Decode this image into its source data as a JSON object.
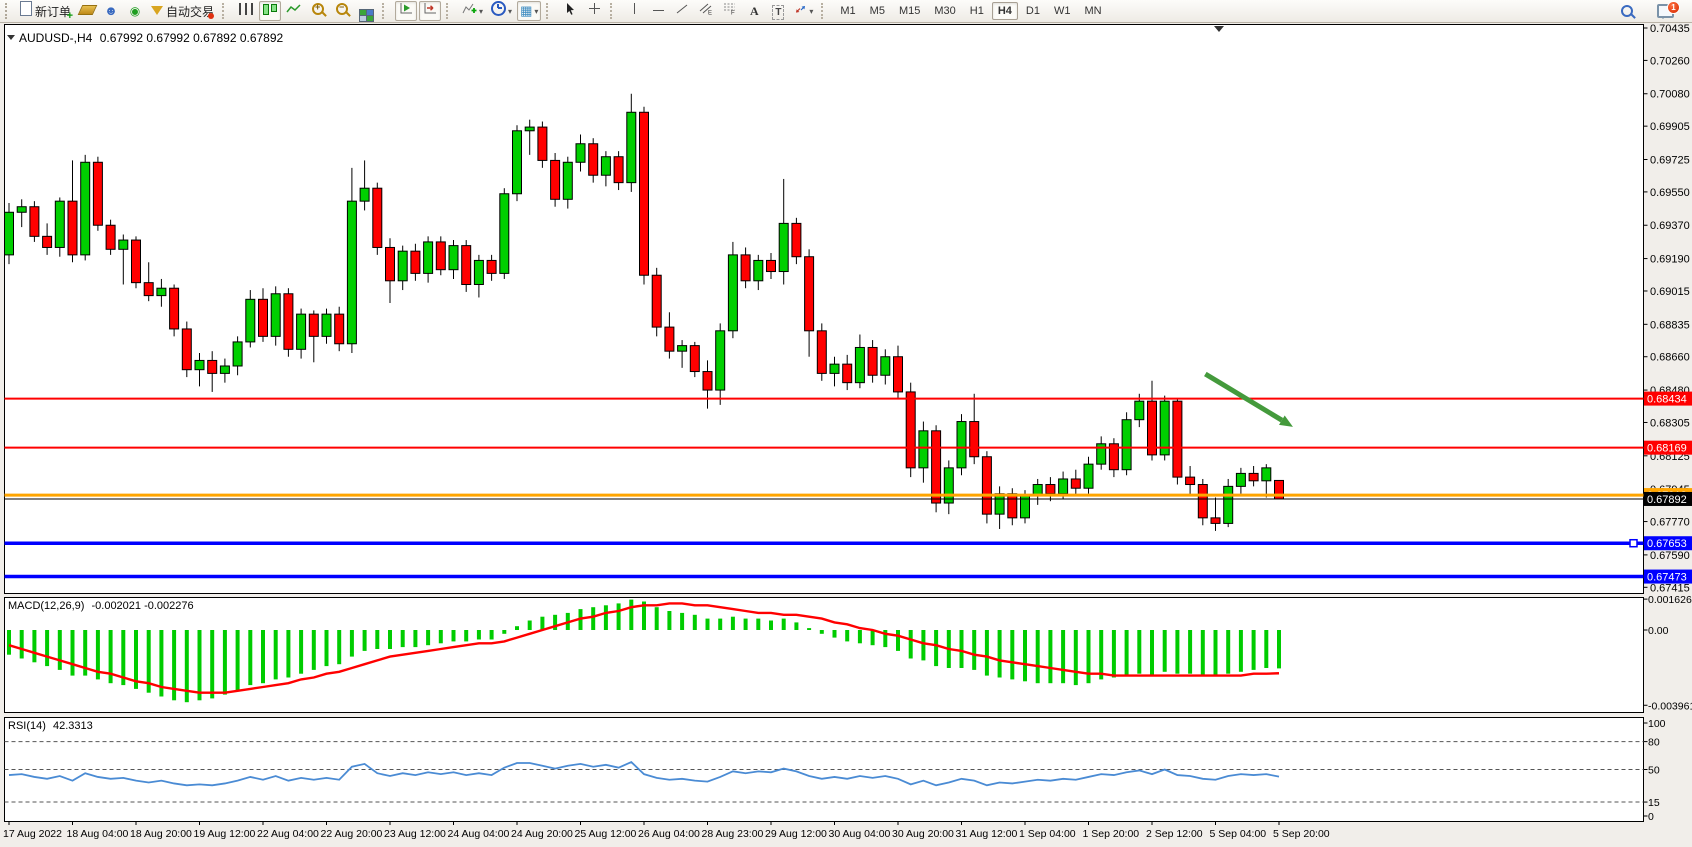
{
  "toolbar": {
    "items": [
      {
        "name": "new-order",
        "icon": "new-order-icon",
        "label": "新订单"
      },
      {
        "name": "styler",
        "icon": "eraser-icon"
      },
      {
        "name": "publisher",
        "icon": "publisher-icon"
      },
      {
        "name": "signals",
        "icon": "signal-icon"
      },
      {
        "name": "autotrade",
        "icon": "autotrade-icon",
        "label": "自动交易"
      },
      {
        "type": "sep"
      },
      {
        "name": "bar-chart-mode",
        "icon": "bars-icon"
      },
      {
        "name": "candle-chart-mode",
        "icon": "candles-icon",
        "active": true
      },
      {
        "name": "line-chart-mode",
        "icon": "line-chart-icon"
      },
      {
        "name": "zoom-in",
        "icon": "zoom-in-icon"
      },
      {
        "name": "zoom-out",
        "icon": "zoom-out-icon"
      },
      {
        "name": "tile-windows",
        "icon": "tiles-icon"
      },
      {
        "type": "sep"
      },
      {
        "name": "auto-scroll",
        "icon": "auto-scroll-icon",
        "active": true
      },
      {
        "name": "chart-shift",
        "icon": "chart-shift-icon",
        "active": true
      },
      {
        "type": "sep"
      },
      {
        "name": "indicators",
        "icon": "indicators-icon",
        "dropdown": true
      },
      {
        "name": "periods",
        "icon": "clock-icon",
        "dropdown": true
      },
      {
        "name": "templates",
        "icon": "template-icon",
        "dropdown": true,
        "active": true
      },
      {
        "type": "sep"
      },
      {
        "name": "cursor",
        "icon": "cursor-icon"
      },
      {
        "name": "crosshair",
        "icon": "crosshair-icon"
      },
      {
        "type": "sep"
      },
      {
        "name": "vertical-line",
        "icon": "vline-icon"
      },
      {
        "name": "horizontal-line",
        "icon": "hline-icon"
      },
      {
        "name": "trendline",
        "icon": "trendline-icon"
      },
      {
        "name": "equidistant-channel",
        "icon": "channel-icon"
      },
      {
        "name": "fibonacci",
        "icon": "fibo-icon"
      },
      {
        "name": "text",
        "icon": "text-icon"
      },
      {
        "name": "text-label",
        "icon": "text-label-icon"
      },
      {
        "name": "arrows",
        "icon": "shapes-icon",
        "dropdown": true
      },
      {
        "type": "sep"
      }
    ],
    "timeframes": [
      {
        "label": "M1"
      },
      {
        "label": "M5"
      },
      {
        "label": "M15"
      },
      {
        "label": "M30"
      },
      {
        "label": "H1"
      },
      {
        "label": "H4",
        "active": true
      },
      {
        "label": "D1"
      },
      {
        "label": "W1"
      },
      {
        "label": "MN"
      }
    ],
    "notifications": {
      "count": "1"
    }
  },
  "chart": {
    "symbol_title": "AUDUSD-,H4",
    "ohlc_text": "0.67992 0.67992 0.67892 0.67892"
  },
  "chart_data": {
    "type": "candlestick",
    "symbol": "AUDUSD-",
    "timeframe": "H4",
    "colors": {
      "up": "#00CF00",
      "down": "#FF0000",
      "outline": "#000000",
      "background": "#FFFFFF"
    },
    "price_axis_ticks": [
      0.70435,
      0.7026,
      0.7008,
      0.69905,
      0.69725,
      0.6955,
      0.6937,
      0.6919,
      0.69015,
      0.68835,
      0.6866,
      0.6848,
      0.68305,
      0.68125,
      0.67945,
      0.6777,
      0.6759,
      0.67415
    ],
    "time_labels": [
      "17 Aug 2022",
      "18 Aug 04:00",
      "18 Aug 20:00",
      "19 Aug 12:00",
      "22 Aug 04:00",
      "22 Aug 20:00",
      "23 Aug 12:00",
      "24 Aug 04:00",
      "24 Aug 20:00",
      "25 Aug 12:00",
      "26 Aug 04:00",
      "28 Aug 23:00",
      "29 Aug 12:00",
      "30 Aug 04:00",
      "30 Aug 20:00",
      "31 Aug 12:00",
      "1 Sep 04:00",
      "1 Sep 20:00",
      "2 Sep 12:00",
      "5 Sep 04:00",
      "5 Sep 20:00"
    ],
    "candles": [
      [
        0.6921,
        0.6949,
        0.6916,
        0.6944
      ],
      [
        0.6944,
        0.6951,
        0.6936,
        0.6947
      ],
      [
        0.6947,
        0.695,
        0.6928,
        0.6931
      ],
      [
        0.6931,
        0.6938,
        0.6921,
        0.6925
      ],
      [
        0.6925,
        0.6952,
        0.692,
        0.695
      ],
      [
        0.695,
        0.6972,
        0.6917,
        0.6921
      ],
      [
        0.6921,
        0.6975,
        0.6918,
        0.6971
      ],
      [
        0.6971,
        0.6974,
        0.6934,
        0.6937
      ],
      [
        0.6937,
        0.694,
        0.6921,
        0.6924
      ],
      [
        0.6924,
        0.6932,
        0.6905,
        0.6929
      ],
      [
        0.6929,
        0.6931,
        0.6903,
        0.6906
      ],
      [
        0.6906,
        0.6917,
        0.6896,
        0.6899
      ],
      [
        0.6899,
        0.6908,
        0.6893,
        0.6903
      ],
      [
        0.6903,
        0.6905,
        0.6877,
        0.6881
      ],
      [
        0.6881,
        0.6885,
        0.6855,
        0.6859
      ],
      [
        0.6859,
        0.6868,
        0.685,
        0.6864
      ],
      [
        0.6864,
        0.6869,
        0.6847,
        0.6857
      ],
      [
        0.6857,
        0.6865,
        0.6852,
        0.6861
      ],
      [
        0.6861,
        0.6877,
        0.6856,
        0.6874
      ],
      [
        0.6874,
        0.6902,
        0.6871,
        0.6897
      ],
      [
        0.6897,
        0.6903,
        0.6874,
        0.6877
      ],
      [
        0.6877,
        0.6904,
        0.6872,
        0.69
      ],
      [
        0.69,
        0.6903,
        0.6866,
        0.687
      ],
      [
        0.687,
        0.6892,
        0.6865,
        0.6889
      ],
      [
        0.6889,
        0.6891,
        0.6863,
        0.6877
      ],
      [
        0.6877,
        0.6892,
        0.6873,
        0.6889
      ],
      [
        0.6889,
        0.6893,
        0.6869,
        0.6873
      ],
      [
        0.6873,
        0.6968,
        0.6868,
        0.695
      ],
      [
        0.695,
        0.6972,
        0.6945,
        0.6957
      ],
      [
        0.6957,
        0.696,
        0.6921,
        0.6925
      ],
      [
        0.6925,
        0.693,
        0.6895,
        0.6907
      ],
      [
        0.6907,
        0.6926,
        0.6902,
        0.6923
      ],
      [
        0.6923,
        0.6927,
        0.6907,
        0.6911
      ],
      [
        0.6911,
        0.6931,
        0.6906,
        0.6928
      ],
      [
        0.6928,
        0.6931,
        0.691,
        0.6913
      ],
      [
        0.6913,
        0.6929,
        0.6908,
        0.6926
      ],
      [
        0.6926,
        0.6929,
        0.6901,
        0.6905
      ],
      [
        0.6905,
        0.6921,
        0.6898,
        0.6918
      ],
      [
        0.6918,
        0.6921,
        0.6907,
        0.6911
      ],
      [
        0.6911,
        0.6957,
        0.6908,
        0.6954
      ],
      [
        0.6954,
        0.6991,
        0.695,
        0.6988
      ],
      [
        0.6988,
        0.6994,
        0.6975,
        0.699
      ],
      [
        0.699,
        0.6993,
        0.6968,
        0.6972
      ],
      [
        0.6972,
        0.6976,
        0.6947,
        0.6951
      ],
      [
        0.6951,
        0.6974,
        0.6946,
        0.6971
      ],
      [
        0.6971,
        0.6986,
        0.6966,
        0.6981
      ],
      [
        0.6981,
        0.6984,
        0.696,
        0.6964
      ],
      [
        0.6964,
        0.6977,
        0.6958,
        0.6974
      ],
      [
        0.6974,
        0.6977,
        0.6956,
        0.696
      ],
      [
        0.696,
        0.7008,
        0.6955,
        0.6998
      ],
      [
        0.6998,
        0.7001,
        0.6905,
        0.691
      ],
      [
        0.691,
        0.6914,
        0.6877,
        0.6882
      ],
      [
        0.6882,
        0.689,
        0.6865,
        0.6869
      ],
      [
        0.6869,
        0.6875,
        0.686,
        0.6872
      ],
      [
        0.6872,
        0.6874,
        0.6855,
        0.6858
      ],
      [
        0.6858,
        0.6864,
        0.6838,
        0.6848
      ],
      [
        0.6848,
        0.6884,
        0.684,
        0.688
      ],
      [
        0.688,
        0.6928,
        0.6876,
        0.6921
      ],
      [
        0.6921,
        0.6925,
        0.6903,
        0.6907
      ],
      [
        0.6907,
        0.6921,
        0.6902,
        0.6918
      ],
      [
        0.6918,
        0.6922,
        0.6908,
        0.6912
      ],
      [
        0.6912,
        0.6962,
        0.6905,
        0.6938
      ],
      [
        0.6938,
        0.6941,
        0.6916,
        0.692
      ],
      [
        0.692,
        0.6924,
        0.6866,
        0.688
      ],
      [
        0.688,
        0.6884,
        0.6853,
        0.6857
      ],
      [
        0.6857,
        0.6866,
        0.685,
        0.6862
      ],
      [
        0.6862,
        0.6867,
        0.6848,
        0.6852
      ],
      [
        0.6852,
        0.6878,
        0.6849,
        0.6871
      ],
      [
        0.6871,
        0.6875,
        0.6852,
        0.6856
      ],
      [
        0.6856,
        0.687,
        0.6851,
        0.6866
      ],
      [
        0.6866,
        0.6872,
        0.6843,
        0.6847
      ],
      [
        0.6847,
        0.6852,
        0.6801,
        0.6806
      ],
      [
        0.6806,
        0.6831,
        0.6798,
        0.6826
      ],
      [
        0.6826,
        0.6829,
        0.6782,
        0.6787
      ],
      [
        0.6787,
        0.681,
        0.6781,
        0.6806
      ],
      [
        0.6806,
        0.6835,
        0.6802,
        0.6831
      ],
      [
        0.6831,
        0.6846,
        0.6808,
        0.6812
      ],
      [
        0.6812,
        0.6815,
        0.6776,
        0.6781
      ],
      [
        0.6781,
        0.6796,
        0.6773,
        0.6792
      ],
      [
        0.6792,
        0.6795,
        0.6775,
        0.6779
      ],
      [
        0.6779,
        0.6794,
        0.6776,
        0.6791
      ],
      [
        0.6791,
        0.68,
        0.6786,
        0.6797
      ],
      [
        0.6797,
        0.6801,
        0.6788,
        0.6792
      ],
      [
        0.6792,
        0.6804,
        0.6789,
        0.68
      ],
      [
        0.68,
        0.6805,
        0.6791,
        0.6795
      ],
      [
        0.6795,
        0.6812,
        0.6792,
        0.6808
      ],
      [
        0.6808,
        0.6823,
        0.6805,
        0.6819
      ],
      [
        0.6819,
        0.6822,
        0.6801,
        0.6805
      ],
      [
        0.6805,
        0.6836,
        0.6802,
        0.6832
      ],
      [
        0.6832,
        0.6846,
        0.6828,
        0.6842
      ],
      [
        0.6842,
        0.6853,
        0.681,
        0.6813
      ],
      [
        0.6813,
        0.6845,
        0.681,
        0.6842
      ],
      [
        0.6842,
        0.6843,
        0.6797,
        0.6801
      ],
      [
        0.6801,
        0.6807,
        0.6791,
        0.6797
      ],
      [
        0.6797,
        0.68,
        0.6775,
        0.6779
      ],
      [
        0.6779,
        0.679,
        0.6772,
        0.6776
      ],
      [
        0.6776,
        0.68,
        0.6774,
        0.6796
      ],
      [
        0.6796,
        0.6806,
        0.6792,
        0.6803
      ],
      [
        0.6803,
        0.6807,
        0.6796,
        0.6799
      ],
      [
        0.6799,
        0.6808,
        0.679,
        0.6806
      ],
      [
        0.67992,
        0.67992,
        0.67892,
        0.67892
      ]
    ],
    "hlines": [
      {
        "price": 0.68434,
        "color": "#FF0000",
        "width": 2,
        "label": "0.68434",
        "text_color": "#FFFFFF"
      },
      {
        "price": 0.68169,
        "color": "#FF0000",
        "width": 2,
        "label": "0.68169",
        "text_color": "#FFFFFF"
      },
      {
        "price": 0.67913,
        "color": "#FFA500",
        "width": 3,
        "label": "0.67913",
        "text_color": "#FFFFFF"
      },
      {
        "price": 0.67892,
        "color": "#000000",
        "width": 1,
        "label": "0.67892",
        "text_color": "#FFFFFF",
        "current": true
      },
      {
        "price": 0.67653,
        "color": "#0000FF",
        "width": 3.5,
        "label": "0.67653",
        "text_color": "#FFFFFF",
        "handle": true
      },
      {
        "price": 0.67473,
        "color": "#0000FF",
        "width": 3.5,
        "label": "0.67473",
        "text_color": "#FFFFFF"
      }
    ],
    "arrow_annotation": {
      "from_index": 94.2,
      "from_price": 0.68567,
      "to_index": 101.1,
      "to_price": 0.68281,
      "color": "#449A3C"
    },
    "macd": {
      "label": "MACD(12,26,9)",
      "values_text": "-0.002021 -0.002276",
      "hist_color": "#00CC00",
      "signal_color": "#FF0000",
      "axis_ticks": [
        {
          "v": 0.001626,
          "t": "0.001626"
        },
        {
          "v": 0,
          "t": "0.00"
        },
        {
          "v": -0.003961,
          "t": "-0.003961"
        }
      ],
      "hist": [
        -0.0013,
        -0.0015,
        -0.0017,
        -0.0019,
        -0.0021,
        -0.0024,
        -0.0024,
        -0.0026,
        -0.0028,
        -0.0029,
        -0.0031,
        -0.0033,
        -0.0035,
        -0.0037,
        -0.0038,
        -0.0037,
        -0.0036,
        -0.0034,
        -0.0032,
        -0.0029,
        -0.0028,
        -0.0026,
        -0.0025,
        -0.0023,
        -0.0021,
        -0.0019,
        -0.0018,
        -0.0014,
        -0.0011,
        -0.001,
        -0.001,
        -0.0009,
        -0.0009,
        -0.0008,
        -0.0007,
        -0.0006,
        -0.0006,
        -0.0005,
        -0.0005,
        -0.0002,
        0.0002,
        0.0005,
        0.0007,
        0.0008,
        0.0009,
        0.0011,
        0.0012,
        0.0013,
        0.0014,
        0.0016,
        0.0015,
        0.0012,
        0.001,
        0.0009,
        0.0008,
        0.0006,
        0.0006,
        0.0007,
        0.0006,
        0.0006,
        0.0005,
        0.0006,
        0.0004,
        0.0001,
        -0.0002,
        -0.0004,
        -0.0006,
        -0.0007,
        -0.0008,
        -0.0009,
        -0.0011,
        -0.0015,
        -0.0016,
        -0.0019,
        -0.002,
        -0.002,
        -0.0021,
        -0.0024,
        -0.0025,
        -0.0026,
        -0.0027,
        -0.0028,
        -0.0028,
        -0.0028,
        -0.0029,
        -0.0028,
        -0.0026,
        -0.0025,
        -0.0024,
        -0.0023,
        -0.0024,
        -0.0022,
        -0.0023,
        -0.0023,
        -0.0024,
        -0.0024,
        -0.0023,
        -0.0022,
        -0.0021,
        -0.002,
        -0.002021
      ],
      "signal": [
        -0.0008,
        -0.001,
        -0.0012,
        -0.0014,
        -0.0016,
        -0.0018,
        -0.002,
        -0.0022,
        -0.0023,
        -0.0025,
        -0.0027,
        -0.0028,
        -0.003,
        -0.0031,
        -0.0032,
        -0.0033,
        -0.0033,
        -0.0033,
        -0.0032,
        -0.0031,
        -0.003,
        -0.0029,
        -0.0028,
        -0.0026,
        -0.0025,
        -0.0023,
        -0.0022,
        -0.002,
        -0.0018,
        -0.0016,
        -0.0014,
        -0.0013,
        -0.0012,
        -0.0011,
        -0.001,
        -0.0009,
        -0.0008,
        -0.0007,
        -0.0007,
        -0.0006,
        -0.0004,
        -0.0002,
        0.0,
        0.0002,
        0.0004,
        0.0006,
        0.0007,
        0.0009,
        0.001,
        0.0012,
        0.0013,
        0.0013,
        0.0014,
        0.0014,
        0.0013,
        0.0013,
        0.0012,
        0.0011,
        0.001,
        0.0009,
        0.0009,
        0.0008,
        0.0008,
        0.0007,
        0.0006,
        0.0004,
        0.0003,
        0.0001,
        0.0,
        -0.0002,
        -0.0003,
        -0.0005,
        -0.0007,
        -0.0008,
        -0.001,
        -0.0011,
        -0.0013,
        -0.0014,
        -0.0016,
        -0.0017,
        -0.0018,
        -0.0019,
        -0.002,
        -0.0021,
        -0.0022,
        -0.0023,
        -0.0023,
        -0.0024,
        -0.0024,
        -0.0024,
        -0.0024,
        -0.0024,
        -0.0024,
        -0.0024,
        -0.0024,
        -0.0024,
        -0.0024,
        -0.0024,
        -0.0023,
        -0.0023,
        -0.002276
      ]
    },
    "rsi": {
      "label": "RSI(14)",
      "value_text": "42.3313",
      "line_color": "#4A8BD4",
      "levels": [
        80,
        50,
        15
      ],
      "axis_ticks": [
        {
          "v": 100,
          "t": "100"
        },
        {
          "v": 80,
          "t": "80"
        },
        {
          "v": 50,
          "t": "50"
        },
        {
          "v": 15,
          "t": "15"
        },
        {
          "v": 0,
          "t": "0"
        }
      ],
      "values": [
        44,
        45,
        42,
        40,
        43,
        38,
        46,
        42,
        40,
        41,
        38,
        36,
        38,
        35,
        33,
        34,
        33,
        35,
        38,
        42,
        39,
        43,
        38,
        41,
        39,
        41,
        39,
        53,
        56,
        46,
        43,
        46,
        44,
        47,
        45,
        47,
        44,
        46,
        44,
        52,
        57,
        57,
        54,
        51,
        54,
        56,
        53,
        55,
        52,
        58,
        45,
        41,
        39,
        40,
        38,
        37,
        42,
        48,
        46,
        48,
        47,
        51,
        48,
        43,
        40,
        42,
        40,
        43,
        41,
        43,
        40,
        34,
        38,
        33,
        36,
        40,
        38,
        33,
        36,
        35,
        37,
        39,
        38,
        40,
        39,
        42,
        45,
        44,
        47,
        49,
        45,
        50,
        44,
        43,
        40,
        39,
        43,
        45,
        44,
        45,
        42.33
      ]
    }
  }
}
